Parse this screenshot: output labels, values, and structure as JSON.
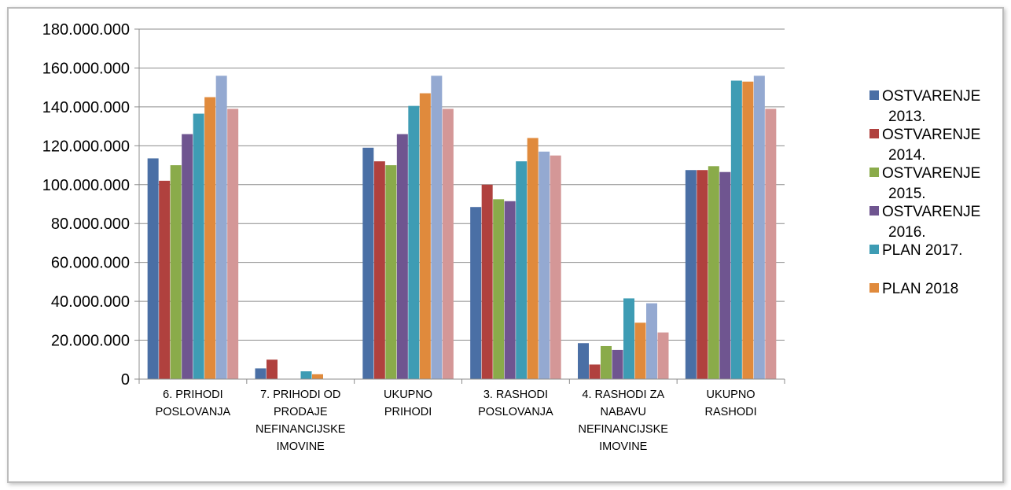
{
  "chart_data": {
    "type": "bar",
    "title": "",
    "xlabel": "",
    "ylabel": "",
    "ylim": [
      0,
      180000000
    ],
    "yticks": [
      0,
      20000000,
      40000000,
      60000000,
      80000000,
      100000000,
      120000000,
      140000000,
      160000000,
      180000000
    ],
    "ytick_labels": [
      "0",
      "20.000.000",
      "40.000.000",
      "60.000.000",
      "80.000.000",
      "100.000.000",
      "120.000.000",
      "140.000.000",
      "160.000.000",
      "180.000.000"
    ],
    "grid": true,
    "legend_position": "right",
    "categories": [
      [
        "6. PRIHODI",
        "POSLOVANJA"
      ],
      [
        "7. PRIHODI OD",
        "PRODAJE",
        "NEFINANCIJSKE",
        "IMOVINE"
      ],
      [
        "UKUPNO",
        "PRIHODI"
      ],
      [
        "3. RASHODI",
        "POSLOVANJA"
      ],
      [
        "4. RASHODI ZA",
        "NABAVU",
        "NEFINANCIJSKE",
        "IMOVINE"
      ],
      [
        "UKUPNO",
        "RASHODI"
      ]
    ],
    "series": [
      {
        "name": "OSTVARENJE 2013.",
        "legend_lines": [
          "OSTVARENJE",
          "2013."
        ],
        "color": "#4a6fa5",
        "values": [
          113500000,
          5500000,
          119000000,
          88500000,
          18500000,
          107500000
        ]
      },
      {
        "name": "OSTVARENJE 2014.",
        "legend_lines": [
          "OSTVARENJE",
          "2014."
        ],
        "color": "#b0413e",
        "values": [
          102000000,
          10000000,
          112000000,
          100000000,
          7500000,
          107500000
        ]
      },
      {
        "name": "OSTVARENJE 2015.",
        "legend_lines": [
          "OSTVARENJE",
          "2015."
        ],
        "color": "#8aab4a",
        "values": [
          110000000,
          0,
          110000000,
          92500000,
          17000000,
          109500000
        ]
      },
      {
        "name": "OSTVARENJE 2016.",
        "legend_lines": [
          "OSTVARENJE",
          "2016."
        ],
        "color": "#6f5590",
        "values": [
          126000000,
          0,
          126000000,
          91500000,
          15000000,
          106500000
        ]
      },
      {
        "name": "PLAN 2017.",
        "legend_lines": [
          "PLAN 2017."
        ],
        "color": "#3e9cb4",
        "values": [
          136500000,
          4000000,
          140500000,
          112000000,
          41500000,
          153500000
        ]
      },
      {
        "name": "PLAN 2018",
        "legend_lines": [
          "PLAN 2018"
        ],
        "color": "#e08a3c",
        "values": [
          145000000,
          2500000,
          147000000,
          124000000,
          29000000,
          153000000
        ]
      },
      {
        "color": "#94a9d1",
        "values": [
          156000000,
          0,
          156000000,
          117000000,
          39000000,
          156000000
        ]
      },
      {
        "color": "#d49797",
        "values": [
          139000000,
          0,
          139000000,
          115000000,
          24000000,
          139000000
        ]
      }
    ]
  }
}
